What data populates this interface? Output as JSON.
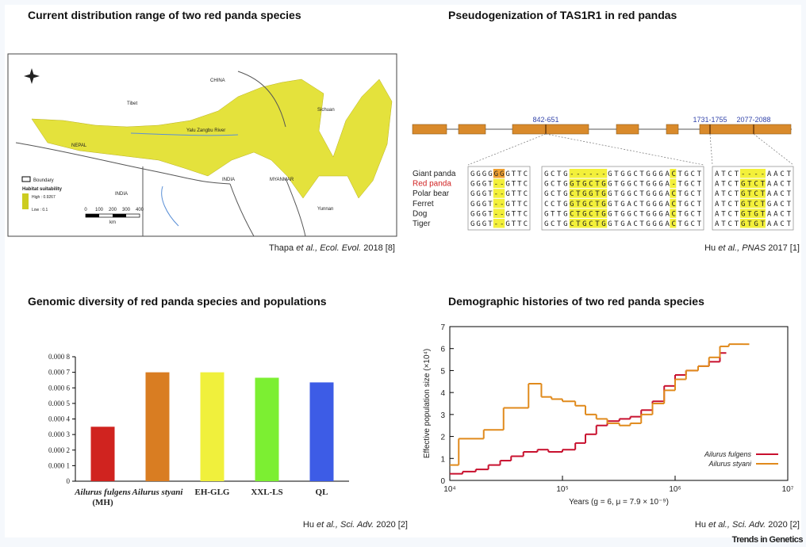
{
  "panels": [
    {
      "title": "Current distribution range of two red panda species",
      "map": {
        "labels": [
          "CHINA",
          "Tibet",
          "Sichuan",
          "Yalu Zangbu River",
          "NEPAL",
          "INDIA",
          "MYANMAR",
          "Yunnan",
          "INDIA"
        ],
        "legend": {
          "boundary": "Boundary",
          "heading": "Habitat suitability",
          "high": "High : 0.9267",
          "low": "Low : 0.1"
        },
        "scale": {
          "ticks": [
            0,
            100,
            200,
            300,
            400
          ],
          "unit": "km"
        }
      },
      "citation": {
        "author": "Thapa",
        "etal": "et al.,",
        "journal": "Ecol. Evol.",
        "rest": "2018 [8]"
      }
    },
    {
      "title": "Pseudogenization of TAS1R1 in red pandas",
      "gene": {
        "regions": [
          "842-651",
          "1731-1755",
          "2077-2088"
        ]
      },
      "alignment": {
        "species": [
          "Giant panda",
          "Red panda",
          "Polar bear",
          "Ferret",
          "Dog",
          "Tiger"
        ],
        "blocks": [
          [
            "GGGGGGGTTC",
            "GGGT--GTTC",
            "GGGT--GTTC",
            "GGGT--GTTC",
            "GGGT--GTTC",
            "GGGT--GTTC"
          ],
          [
            "GCTG------GTGGCTGGGACTGCT",
            "GCTGGTGCTGGTGGCTGGGA-TGCT",
            "GCTGCTGGTGGTGGCTGGGACTGCT",
            "CCTGGTGCTGGTGACTGGGACTGCT",
            "GTTGCTGCTGGTGGCTGGGACTGCT",
            "GCTGCTGCTGGTGACTGGGACTGCT"
          ],
          [
            "ATCT----AACT",
            "ATCTGTCTAACT",
            "ATCTGTCTAACT",
            "ATCTGTCTGACT",
            "ATCTGTGTAACT",
            "ATCTGTGTAACT"
          ]
        ]
      },
      "citation": {
        "author": "Hu",
        "etal": "et al.,",
        "journal": "PNAS",
        "rest": "2017 [1]"
      }
    }
  ],
  "chart_data": [
    {
      "type": "bar",
      "title": "Genomic diversity of  red panda species and populations",
      "categories": [
        "Ailurus fulgens",
        "Ailurus styani",
        "EH-GLG",
        "XXL-LS",
        "QL"
      ],
      "sublabels": [
        "(MH)",
        null,
        null,
        null,
        null
      ],
      "values": [
        0.00035,
        0.0007,
        0.0007,
        0.000665,
        0.000635
      ],
      "colors": [
        "#d0231f",
        "#d97d22",
        "#f0f03c",
        "#7cef32",
        "#3d5ce6"
      ],
      "ylim": [
        0,
        0.0008
      ],
      "yticks": [
        0,
        {
          "value": 0.0001,
          "label": "0.000 1"
        },
        {
          "value": 0.0002,
          "label": "0.000 2"
        },
        {
          "value": 0.0003,
          "label": "0.000 3"
        },
        {
          "value": 0.0004,
          "label": "0.000 4"
        },
        {
          "value": 0.0005,
          "label": "0.000 5"
        },
        {
          "value": 0.0006,
          "label": "0.000 6"
        },
        {
          "value": 0.0007,
          "label": "0.000 7"
        },
        {
          "value": 0.0008,
          "label": "0.000 8"
        }
      ],
      "citation": {
        "author": "Hu",
        "etal": "et al.,",
        "journal": "Sci. Adv.",
        "rest": "2020 [2]"
      }
    },
    {
      "type": "line",
      "title": "Demographic histories of  two red panda species",
      "x_label": "Years (g = 6, μ = 7.9 × 10⁻⁹)",
      "y_label": "Effective population size (×10⁴)",
      "log_x": true,
      "step": true,
      "legend": "lower right",
      "xlim": [
        10000,
        10000000
      ],
      "xticks": [
        {
          "value": 10000,
          "label": "10⁴"
        },
        {
          "value": 100000,
          "label": "10⁵"
        },
        {
          "value": 1000000,
          "label": "10⁶"
        },
        {
          "value": 10000000,
          "label": "10⁷"
        }
      ],
      "ylim": [
        0,
        7
      ],
      "yticks": [
        0,
        1,
        2,
        3,
        4,
        5,
        6,
        7
      ],
      "series": [
        {
          "name": "Ailurus fulgens",
          "color": "#c8102e",
          "x": [
            10000,
            13000,
            17000,
            22000,
            28000,
            35000,
            45000,
            60000,
            75000,
            100000,
            130000,
            160000,
            200000,
            250000,
            320000,
            400000,
            500000,
            630000,
            800000,
            1000000,
            1250000,
            1600000,
            2000000,
            2500000
          ],
          "values": [
            0.3,
            0.4,
            0.5,
            0.7,
            0.9,
            1.1,
            1.3,
            1.4,
            1.3,
            1.4,
            1.7,
            2.1,
            2.5,
            2.7,
            2.8,
            2.9,
            3.2,
            3.6,
            4.3,
            4.8,
            5.0,
            5.2,
            5.4,
            5.8
          ]
        },
        {
          "name": "Ailurus styani",
          "color": "#e08a1c",
          "x": [
            10000,
            12000,
            20000,
            30000,
            50000,
            65000,
            80000,
            100000,
            130000,
            160000,
            200000,
            250000,
            320000,
            400000,
            500000,
            630000,
            800000,
            1000000,
            1250000,
            1600000,
            2000000,
            2500000,
            3000000,
            4000000
          ],
          "values": [
            0.7,
            1.9,
            2.3,
            3.3,
            4.4,
            3.8,
            3.7,
            3.6,
            3.4,
            3.0,
            2.8,
            2.6,
            2.5,
            2.6,
            3.0,
            3.5,
            4.1,
            4.6,
            5.0,
            5.2,
            5.6,
            6.1,
            6.2,
            6.2
          ]
        }
      ],
      "citation": {
        "author": "Hu",
        "etal": "et al.,",
        "journal": "Sci. Adv.",
        "rest": "2020 [2]"
      }
    }
  ],
  "footer": "Trends in Genetics"
}
